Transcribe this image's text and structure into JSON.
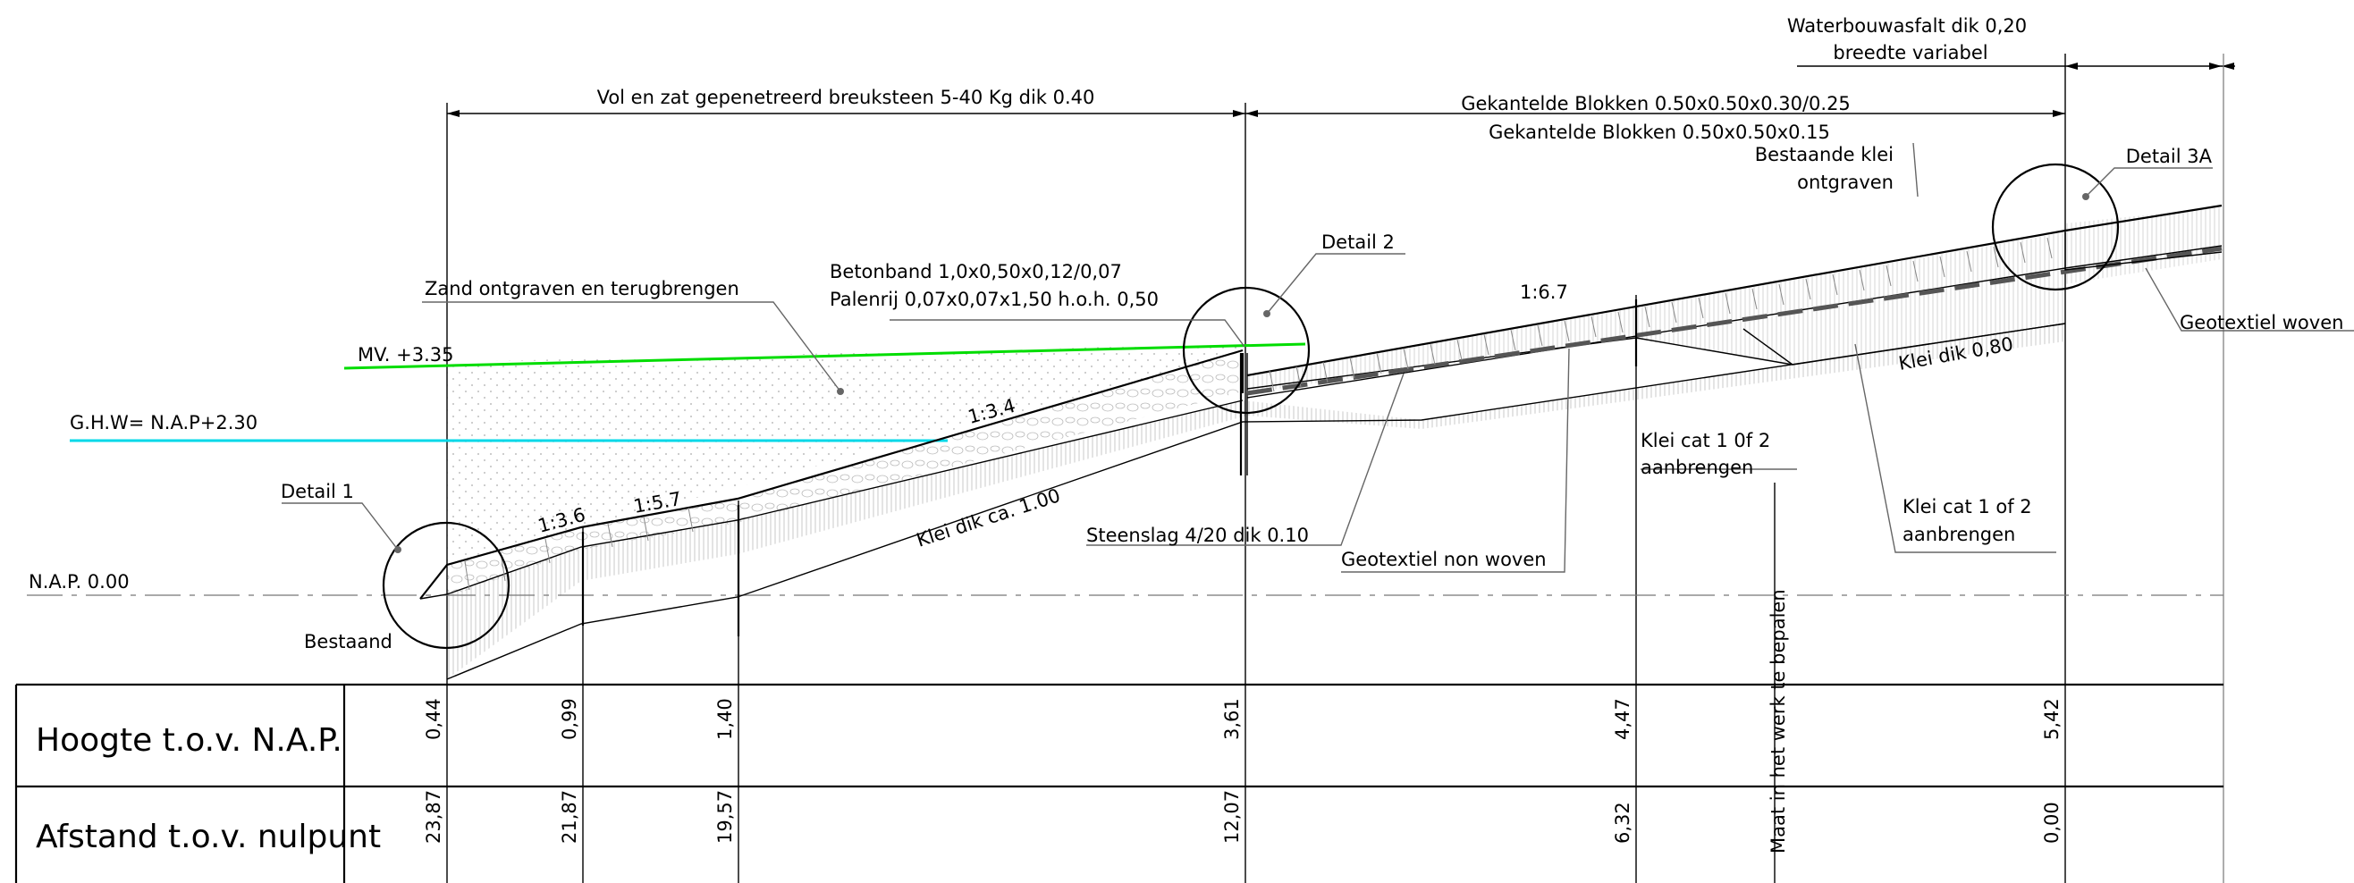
{
  "labels": {
    "waterbouwasfalt_1": "Waterbouwasfalt dik 0,20",
    "waterbouwasfalt_2": "breedte variabel",
    "vol_en_zat": "Vol en zat gepenetreerd breuksteen 5-40 Kg dik 0.40",
    "gekantelde_1": "Gekantelde Blokken 0.50x0.50x0.30/0.25",
    "gekantelde_2": "Gekantelde Blokken 0.50x0.50x0.15",
    "bestaande_klei_1": "Bestaande klei",
    "bestaande_klei_2": "ontgraven",
    "detail_3a": "Detail 3A",
    "detail_2": "Detail 2",
    "detail_1": "Detail 1",
    "zand": "Zand ontgraven en terugbrengen",
    "betonband": "Betonband 1,0x0,50x0,12/0,07",
    "palenrij": "Palenrij 0,07x0,07x1,50 h.o.h. 0,50",
    "mv": "MV. +3.35",
    "ghw": "G.H.W= N.A.P+2.30",
    "nap": "N.A.P. 0.00",
    "slope_67": "1:6.7",
    "slope_34": "1:3.4",
    "slope_57": "1:5.7",
    "slope_36": "1:3.6",
    "geotextiel_woven": "Geotextiel woven",
    "klei_dik_080": "Klei dik 0,80",
    "klei_cat_a_1": "Klei cat 1 0f 2",
    "klei_cat_a_2": "aanbrengen",
    "klei_cat_b_1": "Klei cat 1 of 2",
    "klei_cat_b_2": "aanbrengen",
    "klei_dik_100": "Klei dik ca. 1.00",
    "steenslag": "Steenslag 4/20 dik 0.10",
    "geotextiel_non": "Geotextiel non woven",
    "bestaand": "Bestaand",
    "maat": "Maat in het werk te bepalen"
  },
  "table": {
    "row_hoogte": "Hoogte t.o.v. N.A.P.",
    "row_afstand": "Afstand t.o.v. nulpunt",
    "hoogte": [
      "0,44",
      "0,99",
      "1,40",
      "3,61",
      "4,47",
      "5,42"
    ],
    "afstand": [
      "23,87",
      "21,87",
      "19,57",
      "12,07",
      "6,32",
      "0,00"
    ]
  },
  "colors": {
    "mv_line": "#00dd00",
    "ghw_line": "#00d8e8",
    "linework": "#000000"
  }
}
